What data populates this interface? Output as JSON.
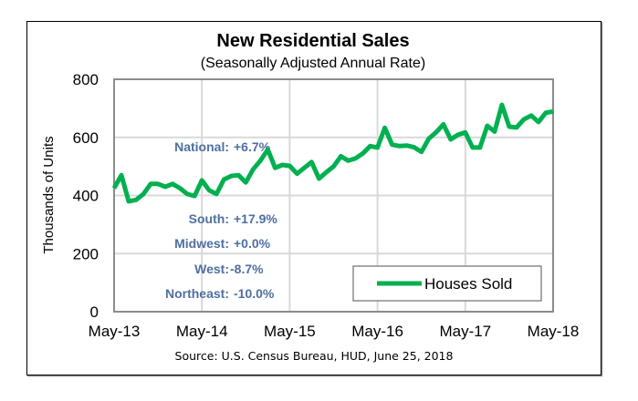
{
  "chart_data": {
    "type": "line",
    "title": "New Residential Sales",
    "subtitle": "(Seasonally Adjusted Annual Rate)",
    "xlabel": "",
    "ylabel": "Thousands of Units",
    "ylim": [
      0,
      800
    ],
    "yticks": [
      0,
      200,
      400,
      600,
      800
    ],
    "ytick_labels": [
      "0",
      "200",
      "400",
      "600",
      "800"
    ],
    "xtick_labels": [
      "May-13",
      "May-14",
      "May-15",
      "May-16",
      "May-17",
      "May-18"
    ],
    "x_start": "May-13",
    "x_end": "May-18",
    "x_frequency": "monthly",
    "grid": true,
    "legend_position": "bottom-right",
    "series": [
      {
        "name": "Houses Sold",
        "color": "#00b050",
        "values": [
          425,
          470,
          380,
          385,
          405,
          440,
          440,
          430,
          440,
          425,
          405,
          398,
          452,
          418,
          405,
          455,
          467,
          470,
          445,
          490,
          520,
          558,
          495,
          505,
          502,
          475,
          495,
          515,
          458,
          480,
          500,
          535,
          520,
          528,
          545,
          570,
          565,
          633,
          575,
          570,
          572,
          566,
          550,
          595,
          617,
          645,
          593,
          609,
          617,
          565,
          565,
          640,
          620,
          712,
          637,
          634,
          662,
          675,
          653,
          685,
          689
        ]
      }
    ],
    "annotations": [
      {
        "label": "National:",
        "value": "+6.7%"
      },
      {
        "label": "South:",
        "value": "+17.9%"
      },
      {
        "label": "Midwest:",
        "value": "+0.0%"
      },
      {
        "label": "West:",
        "value": "-8.7%"
      },
      {
        "label": "Northeast:",
        "value": "-10.0%"
      }
    ],
    "source": "Source:  U.S. Census Bureau, HUD, June 25, 2018"
  },
  "colors": {
    "line": "#00b050",
    "annotation": "#4f6fa0",
    "grid": "#d9d9d9",
    "plot_border": "#8c8c8c"
  }
}
